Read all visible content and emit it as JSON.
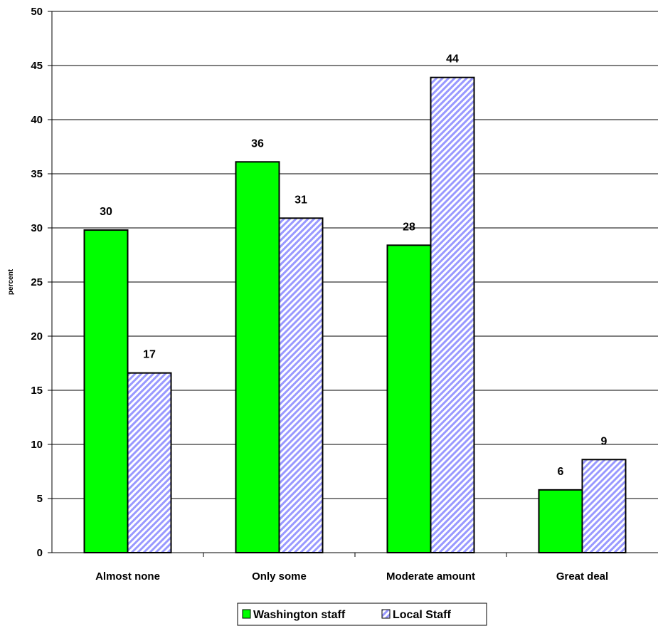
{
  "chart_data": {
    "type": "bar",
    "title": "",
    "xlabel": "",
    "ylabel": "percent",
    "ylim": [
      0,
      50
    ],
    "ytick_step": 5,
    "grid": true,
    "legend_position": "bottom",
    "categories": [
      "Almost none",
      "Only some",
      "Moderate amount",
      "Great deal"
    ],
    "series": [
      {
        "name": "Washington staff",
        "values": [
          29.8,
          36.1,
          28.4,
          5.8
        ],
        "labels": [
          "30",
          "36",
          "28",
          "6"
        ],
        "color": "#00ff00",
        "pattern": "solid"
      },
      {
        "name": "Local Staff",
        "values": [
          16.6,
          30.9,
          43.9,
          8.6
        ],
        "labels": [
          "17",
          "31",
          "44",
          "9"
        ],
        "color": "#9999ff",
        "pattern": "diagonal-hatch"
      }
    ]
  }
}
